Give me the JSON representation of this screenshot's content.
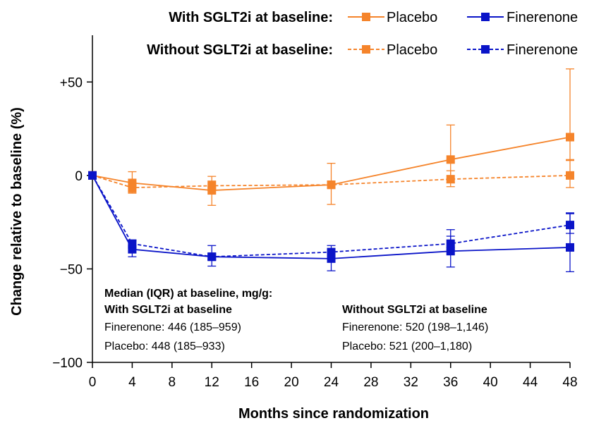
{
  "chart_data": {
    "type": "line",
    "xlabel": "Months since randomization",
    "ylabel": "Change relative to baseline (%)",
    "x": [
      0,
      4,
      12,
      24,
      36,
      48
    ],
    "xlim": [
      0,
      48
    ],
    "ylim": [
      -100,
      75
    ],
    "xticks": [
      0,
      4,
      8,
      12,
      16,
      20,
      24,
      28,
      32,
      36,
      40,
      44,
      48
    ],
    "xtick_labels": [
      "0",
      "4",
      "8",
      "12",
      "16",
      "20",
      "24",
      "28",
      "32",
      "36",
      "40",
      "44",
      "48"
    ],
    "yticks": [
      50,
      0,
      -50,
      -100
    ],
    "ytick_labels": [
      "+50",
      "0",
      "−50",
      "−100"
    ],
    "grid": false,
    "legend": {
      "placement": "top-right",
      "groups": [
        {
          "heading": "With SGLT2i at baseline:",
          "style": "solid",
          "entries": [
            "Placebo",
            "Finerenone"
          ]
        },
        {
          "heading": "Without SGLT2i at baseline:",
          "style": "dashed",
          "entries": [
            "Placebo",
            "Finerenone"
          ]
        }
      ]
    },
    "series": [
      {
        "group": "With SGLT2i at baseline",
        "name": "Placebo",
        "color": "#F5842B",
        "line_style": "solid",
        "values": [
          0,
          -4,
          -8,
          -5,
          8.5,
          20.5
        ],
        "error_low": [
          0,
          -9,
          -16,
          -15.5,
          -6,
          8
        ],
        "error_high": [
          0,
          2,
          -0.5,
          6.5,
          27,
          57
        ]
      },
      {
        "group": "With SGLT2i at baseline",
        "name": "Finerenone",
        "color": "#0A14C8",
        "line_style": "solid",
        "values": [
          0,
          -39.5,
          -43.5,
          -44.5,
          -40.5,
          -38.5
        ],
        "error_low": [
          0,
          -43.5,
          -48.5,
          -51,
          -49,
          -51.5
        ],
        "error_high": [
          0,
          -35,
          -37.5,
          -37.5,
          -29,
          -20.5
        ]
      },
      {
        "group": "Without SGLT2i at baseline",
        "name": "Placebo",
        "color": "#F5842B",
        "line_style": "dashed",
        "values": [
          0,
          -6.5,
          -5.5,
          -5,
          -2,
          0
        ],
        "error_low": [
          0,
          -9.5,
          -8,
          -7,
          -4,
          -6.5
        ],
        "error_high": [
          0,
          -3.5,
          -3,
          -3,
          2.5,
          8.5
        ]
      },
      {
        "group": "Without SGLT2i at baseline",
        "name": "Finerenone",
        "color": "#0A14C8",
        "line_style": "dashed",
        "values": [
          0,
          -36.5,
          -43.5,
          -41,
          -36.5,
          -26.5
        ],
        "error_low": [
          0,
          -39,
          -45,
          -42.5,
          -39.5,
          -31
        ],
        "error_high": [
          0,
          -34.5,
          -42,
          -39.5,
          -32.5,
          -20
        ]
      }
    ],
    "annotation": {
      "title": "Median (IQR) at baseline, mg/g:",
      "with": {
        "heading": "With SGLT2i at baseline",
        "finerenone": "Finerenone: 446 (185–959)",
        "placebo": "Placebo: 448 (185–933)"
      },
      "without": {
        "heading": "Without SGLT2i at baseline",
        "finerenone": "Finerenone: 520 (198–1,146)",
        "placebo": "Placebo: 521 (200–1,180)"
      }
    }
  }
}
